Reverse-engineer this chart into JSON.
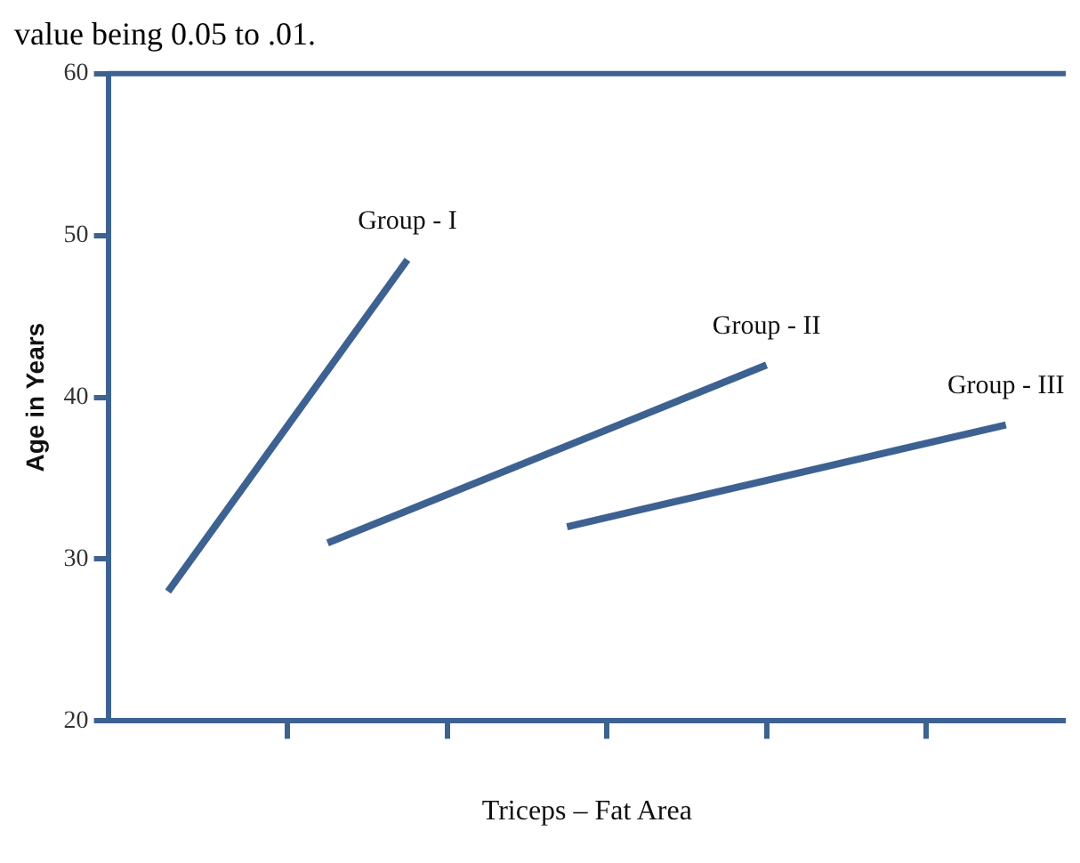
{
  "chart_data": {
    "type": "line",
    "annotations": [
      "value being 0.05 to .01."
    ],
    "xlabel": "Triceps – Fat Area",
    "ylabel": "Age in Years",
    "categories": [
      null,
      null,
      null,
      null,
      null,
      null,
      null,
      null,
      null,
      null,
      null,
      null,
      null,
      null,
      null,
      null,
      null,
      null,
      null,
      null,
      null,
      null,
      null,
      null
    ],
    "ylim": [
      20,
      60
    ],
    "yticks": [
      20,
      30,
      40,
      50,
      60
    ],
    "grid": false,
    "legend": false,
    "marker": "none",
    "line_style": "solid",
    "series": [
      {
        "name": "Group - I",
        "color": "#3d6291",
        "values": [
          null,
          28,
          null,
          null,
          null,
          null,
          null,
          48.5,
          null,
          null,
          null,
          null,
          null,
          null,
          null,
          null,
          null,
          null,
          null,
          null,
          null,
          null,
          null,
          null
        ]
      },
      {
        "name": "Group - II",
        "color": "#3d6291",
        "values": [
          null,
          null,
          null,
          null,
          null,
          31,
          null,
          null,
          null,
          null,
          null,
          null,
          null,
          null,
          null,
          null,
          42,
          null,
          null,
          null,
          null,
          null,
          null,
          null
        ]
      },
      {
        "name": "Group - III",
        "color": "#3d6291",
        "values": [
          null,
          null,
          null,
          null,
          null,
          null,
          null,
          null,
          null,
          null,
          null,
          32,
          null,
          null,
          null,
          null,
          null,
          null,
          null,
          null,
          null,
          null,
          38.3,
          null
        ]
      }
    ]
  }
}
